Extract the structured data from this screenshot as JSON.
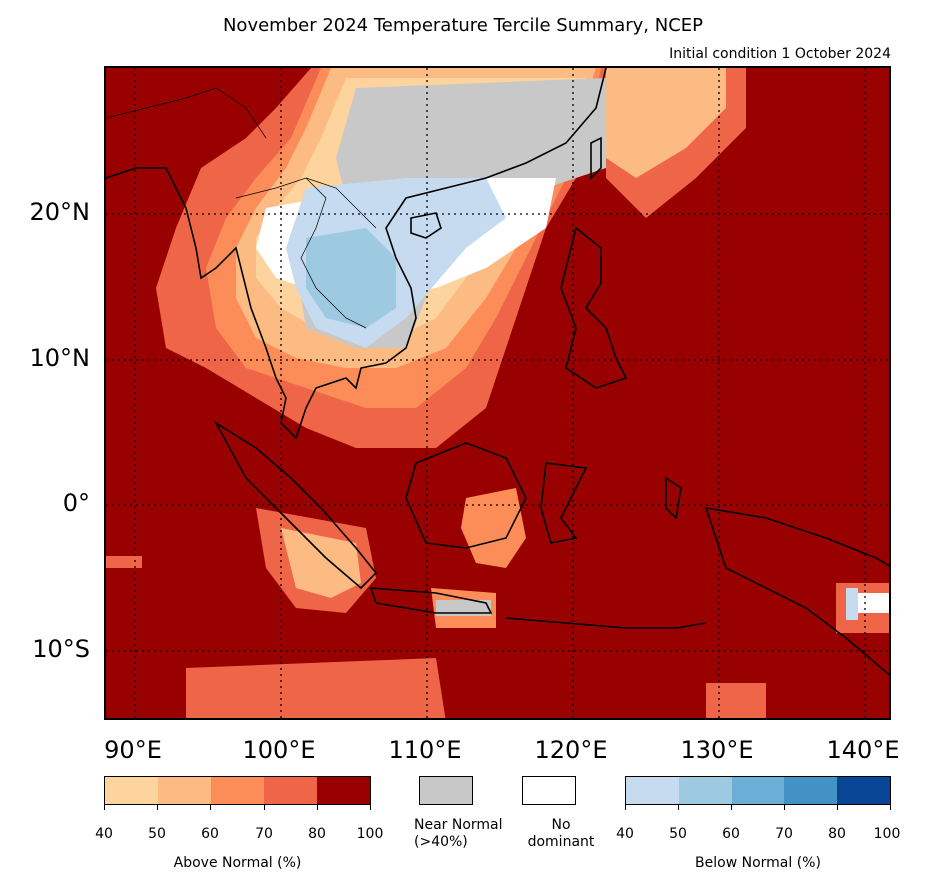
{
  "title": "November 2024 Temperature Tercile Summary, NCEP",
  "subtitle": "Initial condition 1 October 2024",
  "map": {
    "lat_labels": [
      "20°N",
      "10°N",
      "0°",
      "10°S"
    ],
    "lon_labels": [
      "90°E",
      "100°E",
      "110°E",
      "120°E",
      "130°E",
      "140°E"
    ],
    "background_color": "#990000"
  },
  "legend": {
    "above_normal": {
      "caption": "Above Normal (%)",
      "ticks": [
        "40",
        "50",
        "60",
        "70",
        "80",
        "100"
      ],
      "colors": [
        "#fdd49e",
        "#fdbb84",
        "#fc8d59",
        "#ef6548",
        "#990000"
      ]
    },
    "near_normal": {
      "caption_line1": "Near Normal",
      "caption_line2": "(>40%)",
      "color": "#c8c8c8"
    },
    "no_dominant": {
      "caption_line1": "No",
      "caption_line2": "dominant",
      "color": "#ffffff"
    },
    "below_normal": {
      "caption": "Below Normal (%)",
      "ticks": [
        "40",
        "50",
        "60",
        "70",
        "80",
        "100"
      ],
      "colors": [
        "#c6dbef",
        "#9ecae1",
        "#6baed6",
        "#4292c6",
        "#084594"
      ]
    }
  }
}
